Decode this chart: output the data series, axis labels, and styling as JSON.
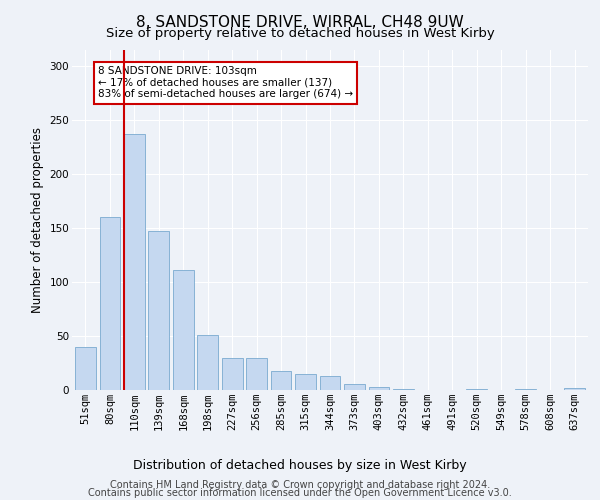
{
  "title1": "8, SANDSTONE DRIVE, WIRRAL, CH48 9UW",
  "title2": "Size of property relative to detached houses in West Kirby",
  "xlabel": "Distribution of detached houses by size in West Kirby",
  "ylabel": "Number of detached properties",
  "bins": [
    "51sqm",
    "80sqm",
    "110sqm",
    "139sqm",
    "168sqm",
    "198sqm",
    "227sqm",
    "256sqm",
    "285sqm",
    "315sqm",
    "344sqm",
    "373sqm",
    "403sqm",
    "432sqm",
    "461sqm",
    "491sqm",
    "520sqm",
    "549sqm",
    "578sqm",
    "608sqm",
    "637sqm"
  ],
  "values": [
    40,
    160,
    237,
    147,
    111,
    51,
    30,
    30,
    18,
    15,
    13,
    6,
    3,
    1,
    0,
    0,
    1,
    0,
    1,
    0,
    2
  ],
  "bar_color": "#c5d8f0",
  "bar_edge_color": "#7aaad0",
  "ylim": [
    0,
    315
  ],
  "yticks": [
    0,
    50,
    100,
    150,
    200,
    250,
    300
  ],
  "annotation_text": "8 SANDSTONE DRIVE: 103sqm\n← 17% of detached houses are smaller (137)\n83% of semi-detached houses are larger (674) →",
  "annotation_box_color": "#ffffff",
  "annotation_box_edge": "#cc0000",
  "red_line_color": "#cc0000",
  "footer1": "Contains HM Land Registry data © Crown copyright and database right 2024.",
  "footer2": "Contains public sector information licensed under the Open Government Licence v3.0.",
  "bg_color": "#eef2f8",
  "grid_color": "#ffffff",
  "title1_fontsize": 11,
  "title2_fontsize": 9.5,
  "xlabel_fontsize": 9,
  "ylabel_fontsize": 8.5,
  "tick_fontsize": 7.5,
  "footer_fontsize": 7,
  "ann_fontsize": 7.5
}
